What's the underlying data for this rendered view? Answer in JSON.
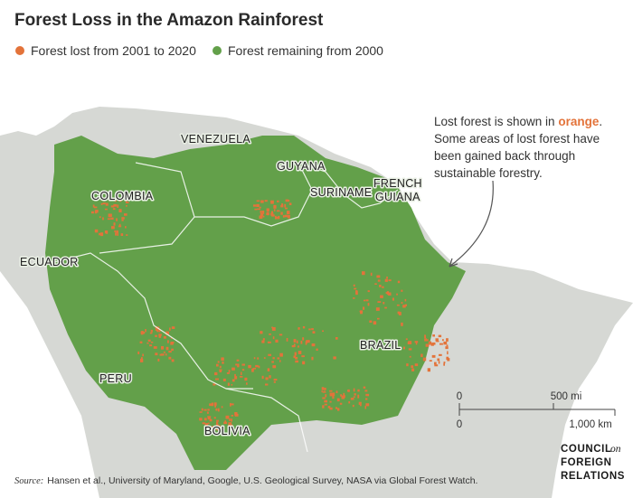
{
  "header": {
    "title": "Forest Loss in the Amazon Rainforest"
  },
  "legend": {
    "items": [
      {
        "label": "Forest lost from 2001 to 2020",
        "color": "#e3733a"
      },
      {
        "label": "Forest remaining from 2000",
        "color": "#63a04a"
      }
    ]
  },
  "map": {
    "labels": [
      "VENEZUELA",
      "GUYANA",
      "SURINAME",
      "FRENCH",
      "GUIANA",
      "COLOMBIA",
      "ECUADOR",
      "PERU",
      "BRAZIL",
      "BOLIVIA"
    ]
  },
  "annotation": {
    "parts": [
      "Lost forest is shown in ",
      "orange",
      "."
    ],
    "lines": [
      "Some areas of lost forest have",
      "been gained back through",
      "sustainable forestry."
    ]
  },
  "scale_bar": {
    "mi_start": "0",
    "mi_end": "500 mi",
    "km_start": "0",
    "km_end": "1,000 km"
  },
  "source": {
    "prefix": "Source:",
    "text": "Hansen et al., University of Maryland, Google, U.S. Geological Survey, NASA via Global Forest Watch."
  },
  "logo": {
    "lines": [
      "COUNCIL",
      "on",
      "FOREIGN",
      "RELATIONS"
    ]
  }
}
